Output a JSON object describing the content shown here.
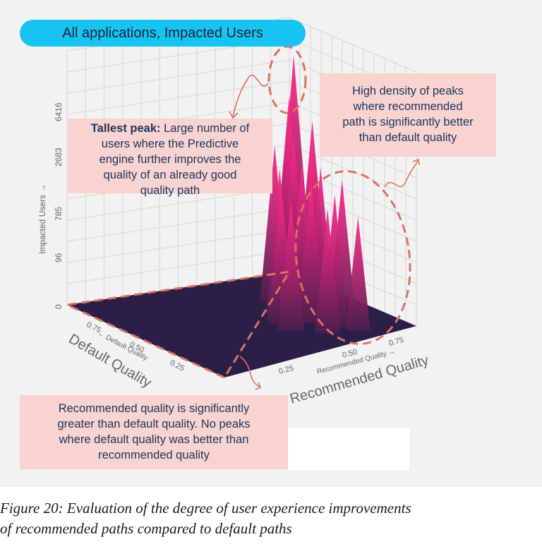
{
  "banner": "All applications, Impacted Users",
  "chart_data": {
    "type": "surface3d",
    "zlabel": "Impacted Users →",
    "z_ticks": [
      "0",
      "96",
      "785",
      "2683",
      "6416"
    ],
    "x_axis_title": "Default Quality",
    "x_axis_subtitle": "← Default Quality",
    "x_ticks": [
      "0.75",
      "0.50",
      "0.25"
    ],
    "y_axis_title": "Recommended Quality",
    "y_axis_subtitle": "Recommended Quality →",
    "y_ticks": [
      "0.25",
      "0.50",
      "0.75"
    ],
    "colors": {
      "floor": "#2a1f46",
      "peak_low": "#4a1f4c",
      "peak_high": "#ff2a8a",
      "annotation": "#e0705f"
    },
    "peaks": [
      {
        "default_quality": 0.73,
        "recommended_quality": 0.86,
        "users": 6416
      },
      {
        "default_quality": 0.7,
        "recommended_quality": 0.82,
        "users": 1600
      },
      {
        "default_quality": 0.66,
        "recommended_quality": 0.8,
        "users": 820
      },
      {
        "default_quality": 0.6,
        "recommended_quality": 0.78,
        "users": 500
      },
      {
        "default_quality": 0.55,
        "recommended_quality": 0.83,
        "users": 420
      },
      {
        "default_quality": 0.5,
        "recommended_quality": 0.8,
        "users": 360
      },
      {
        "default_quality": 0.62,
        "recommended_quality": 0.88,
        "users": 700
      },
      {
        "default_quality": 0.45,
        "recommended_quality": 0.72,
        "users": 260
      },
      {
        "default_quality": 0.4,
        "recommended_quality": 0.78,
        "users": 230
      },
      {
        "default_quality": 0.35,
        "recommended_quality": 0.7,
        "users": 180
      },
      {
        "default_quality": 0.3,
        "recommended_quality": 0.82,
        "users": 170
      },
      {
        "default_quality": 0.25,
        "recommended_quality": 0.75,
        "users": 120
      },
      {
        "default_quality": 0.2,
        "recommended_quality": 0.68,
        "users": 90
      },
      {
        "default_quality": 0.15,
        "recommended_quality": 0.8,
        "users": 60
      },
      {
        "default_quality": 0.8,
        "recommended_quality": 0.9,
        "users": 420
      },
      {
        "default_quality": 0.85,
        "recommended_quality": 0.93,
        "users": 300
      },
      {
        "default_quality": 0.9,
        "recommended_quality": 0.95,
        "users": 200
      },
      {
        "default_quality": 0.42,
        "recommended_quality": 0.6,
        "users": 140
      },
      {
        "default_quality": 0.32,
        "recommended_quality": 0.58,
        "users": 110
      },
      {
        "default_quality": 0.52,
        "recommended_quality": 0.66,
        "users": 200
      },
      {
        "default_quality": 0.68,
        "recommended_quality": 0.74,
        "users": 300
      }
    ]
  },
  "callouts": {
    "tallest": [
      {
        "bold": "Tallest peak:",
        "text": " Large number of"
      },
      {
        "bold": "",
        "text": "users where the Predictive"
      },
      {
        "bold": "",
        "text": "engine further improves the"
      },
      {
        "bold": "",
        "text": "quality of an already good"
      },
      {
        "bold": "",
        "text": "quality path"
      }
    ],
    "density": [
      "High density of peaks",
      "where recommended",
      "path is  significantly better",
      "than default quality"
    ],
    "recommended": [
      {
        "bold": "Recommended",
        "text": " quality is significantly"
      },
      {
        "bold": "",
        "text": "greater than default quality. No peaks"
      },
      {
        "bold": "",
        "text": "where default quality was better than"
      },
      {
        "bold": "",
        "text": "recommended quality"
      }
    ]
  },
  "caption": [
    "Figure 20: Evaluation of the degree of user experience improvements",
    "of recommended paths compared to default paths"
  ]
}
